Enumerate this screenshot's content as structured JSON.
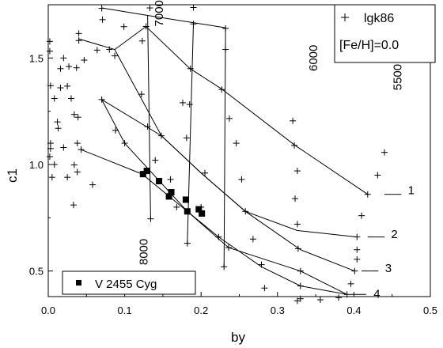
{
  "chart_data": {
    "type": "scatter",
    "title": "",
    "xlabel": "by",
    "ylabel": "c1",
    "xlim": [
      0.0,
      0.5
    ],
    "ylim": [
      0.38,
      1.75
    ],
    "x_ticks": [
      0.0,
      0.1,
      0.2,
      0.3,
      0.4,
      0.5
    ],
    "x_tick_labels": [
      "0.0",
      "0.1",
      "0.2",
      "0.3",
      "0.4",
      "0.5"
    ],
    "y_ticks": [
      0.5,
      1.0,
      1.5
    ],
    "y_tick_labels": [
      "0.5",
      "1.0",
      "1.5"
    ],
    "grid": false,
    "legends": [
      {
        "position": "top-right",
        "entries": [
          {
            "marker": "+",
            "label": "lgk86"
          }
        ],
        "note": "[Fe/H]=0.0"
      },
      {
        "position": "bottom-left",
        "entries": [
          {
            "marker": "filled-square",
            "label": "V 2455 Cyg"
          }
        ]
      }
    ],
    "series": [
      {
        "name": "lgk86",
        "marker": "+",
        "points": [
          [
            0.07,
            1.733
          ],
          [
            0.071,
            1.68
          ],
          [
            0.099,
            1.647
          ],
          [
            0.123,
            1.58
          ],
          [
            0.128,
            1.648
          ],
          [
            0.133,
            1.735
          ],
          [
            0.19,
            1.737
          ],
          [
            0.19,
            1.66
          ],
          [
            0.232,
            1.639
          ],
          [
            0.232,
            1.54
          ],
          [
            0.002,
            1.578
          ],
          [
            0.002,
            1.532
          ],
          [
            0.02,
            1.5
          ],
          [
            0.016,
            1.45
          ],
          [
            0.027,
            1.46
          ],
          [
            0.037,
            1.454
          ],
          [
            0.047,
            1.49
          ],
          [
            0.04,
            1.582
          ],
          [
            0.064,
            1.537
          ],
          [
            0.04,
            1.615
          ],
          [
            0.08,
            1.54
          ],
          [
            0.003,
            1.37
          ],
          [
            0.008,
            1.31
          ],
          [
            0.016,
            1.36
          ],
          [
            0.025,
            1.368
          ],
          [
            0.03,
            1.31
          ],
          [
            0.012,
            1.2
          ],
          [
            0.013,
            1.17
          ],
          [
            0.034,
            1.235
          ],
          [
            0.039,
            1.222
          ],
          [
            0.003,
            1.1
          ],
          [
            0.003,
            1.075
          ],
          [
            0.002,
            1.037
          ],
          [
            0.008,
            1.0
          ],
          [
            0.02,
            1.08
          ],
          [
            0.038,
            1.1
          ],
          [
            0.034,
            0.998
          ],
          [
            0.038,
            0.965
          ],
          [
            0.005,
            0.94
          ],
          [
            0.025,
            0.94
          ],
          [
            0.058,
            0.905
          ],
          [
            0.033,
            0.81
          ],
          [
            0.043,
            1.07
          ],
          [
            0.087,
            1.51
          ],
          [
            0.07,
            1.305
          ],
          [
            0.122,
            1.33
          ],
          [
            0.13,
            1.178
          ],
          [
            0.088,
            1.16
          ],
          [
            0.1,
            1.1
          ],
          [
            0.14,
            1.02
          ],
          [
            0.16,
            0.93
          ],
          [
            0.176,
            1.29
          ],
          [
            0.185,
            1.282
          ],
          [
            0.181,
            1.125
          ],
          [
            0.186,
            1.45
          ],
          [
            0.227,
            1.352
          ],
          [
            0.237,
            1.216
          ],
          [
            0.246,
            1.1
          ],
          [
            0.253,
            0.93
          ],
          [
            0.205,
            0.96
          ],
          [
            0.168,
            0.8
          ],
          [
            0.182,
            0.63
          ],
          [
            0.134,
            0.745
          ],
          [
            0.223,
            0.66
          ],
          [
            0.2,
            0.8
          ],
          [
            0.236,
            0.61
          ],
          [
            0.258,
            0.78
          ],
          [
            0.268,
            0.65
          ],
          [
            0.279,
            0.53
          ],
          [
            0.283,
            0.42
          ],
          [
            0.32,
            1.205
          ],
          [
            0.322,
            1.09
          ],
          [
            0.326,
            0.97
          ],
          [
            0.323,
            0.84
          ],
          [
            0.326,
            0.72
          ],
          [
            0.327,
            0.605
          ],
          [
            0.33,
            0.5
          ],
          [
            0.33,
            0.43
          ],
          [
            0.33,
            0.37
          ],
          [
            0.356,
            0.365
          ],
          [
            0.38,
            0.375
          ],
          [
            0.391,
            0.39
          ],
          [
            0.396,
            0.44
          ],
          [
            0.401,
            0.5
          ],
          [
            0.404,
            0.555
          ],
          [
            0.404,
            0.6
          ],
          [
            0.404,
            0.66
          ],
          [
            0.41,
            0.76
          ],
          [
            0.418,
            0.86
          ],
          [
            0.431,
            0.95
          ],
          [
            0.44,
            1.057
          ],
          [
            0.326,
            0.36
          ],
          [
            0.23,
            0.52
          ],
          [
            0.148,
            1.135
          ]
        ]
      },
      {
        "name": "V 2455 Cyg",
        "marker": "filled-square",
        "points": [
          [
            0.124,
            0.955
          ],
          [
            0.129,
            0.97
          ],
          [
            0.145,
            0.922
          ],
          [
            0.161,
            0.87
          ],
          [
            0.158,
            0.85
          ],
          [
            0.18,
            0.835
          ],
          [
            0.182,
            0.78
          ],
          [
            0.197,
            0.79
          ],
          [
            0.201,
            0.77
          ]
        ]
      }
    ],
    "lines": [
      {
        "points": [
          [
            0.07,
            1.735
          ],
          [
            0.13,
            1.7
          ],
          [
            0.232,
            1.642
          ]
        ]
      },
      {
        "points": [
          [
            0.04,
            1.59
          ],
          [
            0.087,
            1.54
          ],
          [
            0.128,
            1.648
          ],
          [
            0.185,
            1.452
          ],
          [
            0.228,
            1.352
          ],
          [
            0.323,
            1.09
          ],
          [
            0.418,
            0.86
          ]
        ]
      },
      {
        "points": [
          [
            0.087,
            1.54
          ],
          [
            0.148,
            1.135
          ],
          [
            0.2,
            0.96
          ],
          [
            0.258,
            0.78
          ],
          [
            0.326,
            0.69
          ],
          [
            0.404,
            0.66
          ]
        ]
      },
      {
        "points": [
          [
            0.07,
            1.305
          ],
          [
            0.148,
            1.135
          ],
          [
            0.2,
            0.96
          ],
          [
            0.258,
            0.78
          ],
          [
            0.33,
            0.6
          ],
          [
            0.401,
            0.5
          ]
        ]
      },
      {
        "points": [
          [
            0.07,
            1.305
          ],
          [
            0.1,
            1.1
          ],
          [
            0.182,
            0.78
          ],
          [
            0.236,
            0.61
          ],
          [
            0.33,
            0.5
          ],
          [
            0.391,
            0.39
          ]
        ]
      },
      {
        "points": [
          [
            0.043,
            1.07
          ],
          [
            0.123,
            0.955
          ],
          [
            0.182,
            0.78
          ],
          [
            0.223,
            0.66
          ],
          [
            0.279,
            0.52
          ],
          [
            0.33,
            0.43
          ],
          [
            0.391,
            0.39
          ]
        ]
      },
      {
        "points": [
          [
            0.13,
            1.7
          ],
          [
            0.134,
            0.745
          ]
        ]
      },
      {
        "points": [
          [
            0.19,
            1.66
          ],
          [
            0.182,
            0.63
          ]
        ]
      },
      {
        "points": [
          [
            0.232,
            1.642
          ],
          [
            0.23,
            0.52
          ]
        ]
      }
    ],
    "annotations": [
      {
        "text": "7000",
        "x": 0.15,
        "y": 1.71,
        "rotate": -90
      },
      {
        "text": "6000",
        "x": 0.352,
        "y": 1.5,
        "rotate": -90
      },
      {
        "text": "5500",
        "x": 0.462,
        "y": 1.41,
        "rotate": -90
      },
      {
        "text": "8000",
        "x": 0.13,
        "y": 0.59,
        "rotate": -90
      },
      {
        "text": "1",
        "x": 0.475,
        "y": 0.86
      },
      {
        "text": "2",
        "x": 0.453,
        "y": 0.655
      },
      {
        "text": "3",
        "x": 0.445,
        "y": 0.495
      },
      {
        "text": "4",
        "x": 0.43,
        "y": 0.375
      }
    ],
    "label_leaders": [
      {
        "from": [
          0.44,
          0.86
        ],
        "to": [
          0.462,
          0.86
        ]
      },
      {
        "from": [
          0.418,
          0.66
        ],
        "to": [
          0.44,
          0.66
        ]
      },
      {
        "from": [
          0.41,
          0.5
        ],
        "to": [
          0.432,
          0.5
        ]
      },
      {
        "from": [
          0.395,
          0.39
        ],
        "to": [
          0.416,
          0.39
        ]
      }
    ]
  }
}
